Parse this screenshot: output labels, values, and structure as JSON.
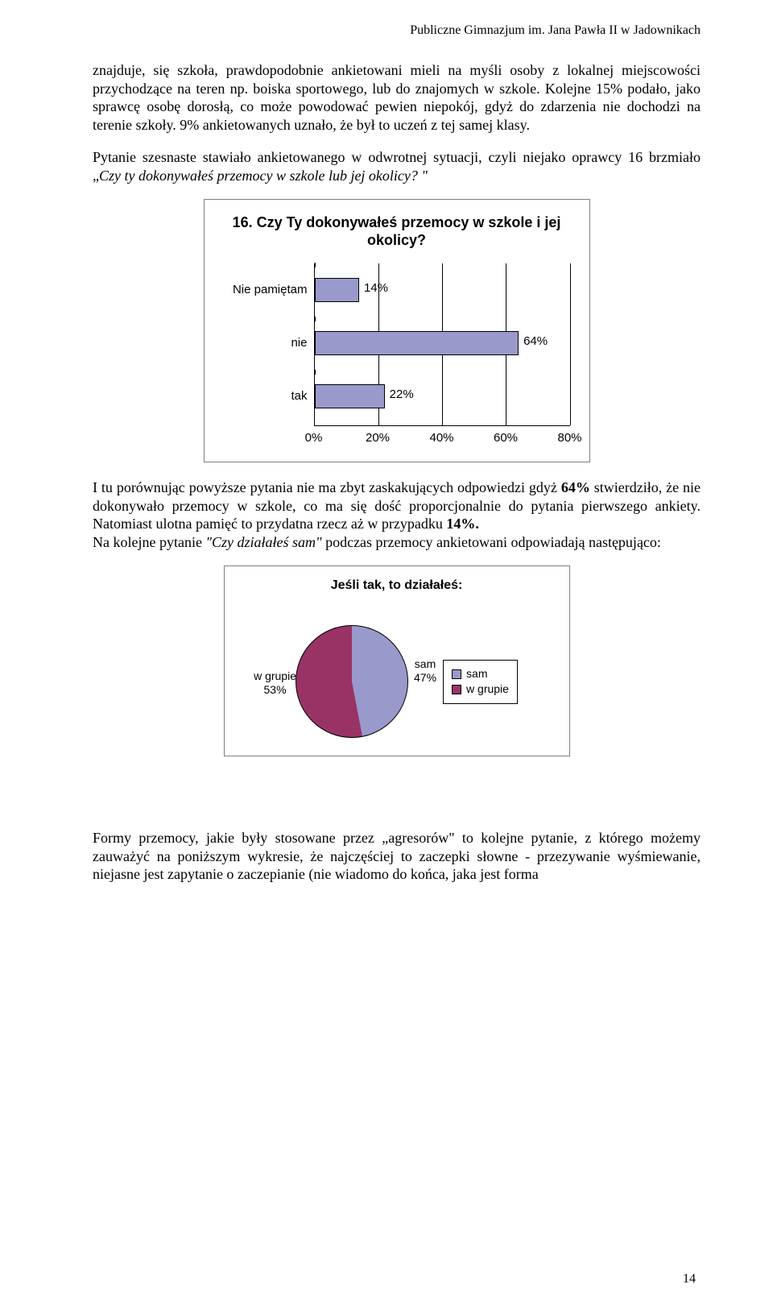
{
  "header": "Publiczne Gimnazjum im. Jana Pawła II w Jadownikach",
  "para1": "znajduje, się szkoła, prawdopodobnie ankietowani mieli na myśli osoby z lokalnej miejscowości przychodzące na teren np. boiska sportowego, lub do znajomych w szkole. Kolejne 15% podało, jako sprawcę osobę dorosłą, co może powodować pewien niepokój, gdyż do zdarzenia nie dochodzi na terenie szkoły. 9% ankietowanych uznało, że był to uczeń z tej samej klasy.",
  "para2_a": "Pytanie szesnaste stawiało ankietowanego w odwrotnej sytuacji, czyli niejako oprawcy 16 brzmiało „",
  "para2_b": "Czy ty dokonywałeś przemocy w szkole lub jej okolicy? \"",
  "chart1": {
    "title": "16. Czy Ty dokonywałeś przemocy w szkole i jej okolicy?",
    "categories": [
      "Nie pamiętam",
      "nie",
      "tak"
    ],
    "values": [
      14,
      64,
      22
    ],
    "value_labels": [
      "14%",
      "64%",
      "22%"
    ],
    "bar_color": "#9999cc",
    "xmax": 80,
    "xticks": [
      0,
      20,
      40,
      60,
      80
    ],
    "xtick_labels": [
      "0%",
      "20%",
      "40%",
      "60%",
      "80%"
    ]
  },
  "para3_a": "I tu porównując powyższe pytania nie ma zbyt zaskakujących odpowiedzi gdyż ",
  "para3_b": "64%",
  "para3_c": " stwierdziło, że nie dokonywało przemocy w szkole, co ma się dość proporcjonalnie do pytania pierwszego ankiety. Natomiast ulotna pamięć to przydatna rzecz aż w przypadku ",
  "para3_d": "14%.",
  "para4_a": "Na kolejne pytanie ",
  "para4_b": "\"Czy działałeś sam\"",
  "para4_c": " podczas przemocy ankietowani odpowiadają następująco:",
  "chart2": {
    "title": "Jeśli tak, to działałeś:",
    "slice1": {
      "label": "sam",
      "value": "47%",
      "color": "#9999cc"
    },
    "slice2": {
      "label": "w grupie",
      "value": "53%",
      "color": "#993366"
    },
    "legend": [
      "sam",
      "w grupie"
    ]
  },
  "para5": "Formy przemocy, jakie były stosowane przez „agresorów\" to kolejne pytanie, z którego możemy zauważyć na poniższym wykresie, że najczęściej to zaczepki słowne - przezywanie wyśmiewanie, niejasne jest zapytanie o zaczepianie (nie wiadomo do końca, jaka jest forma",
  "page_number": "14"
}
